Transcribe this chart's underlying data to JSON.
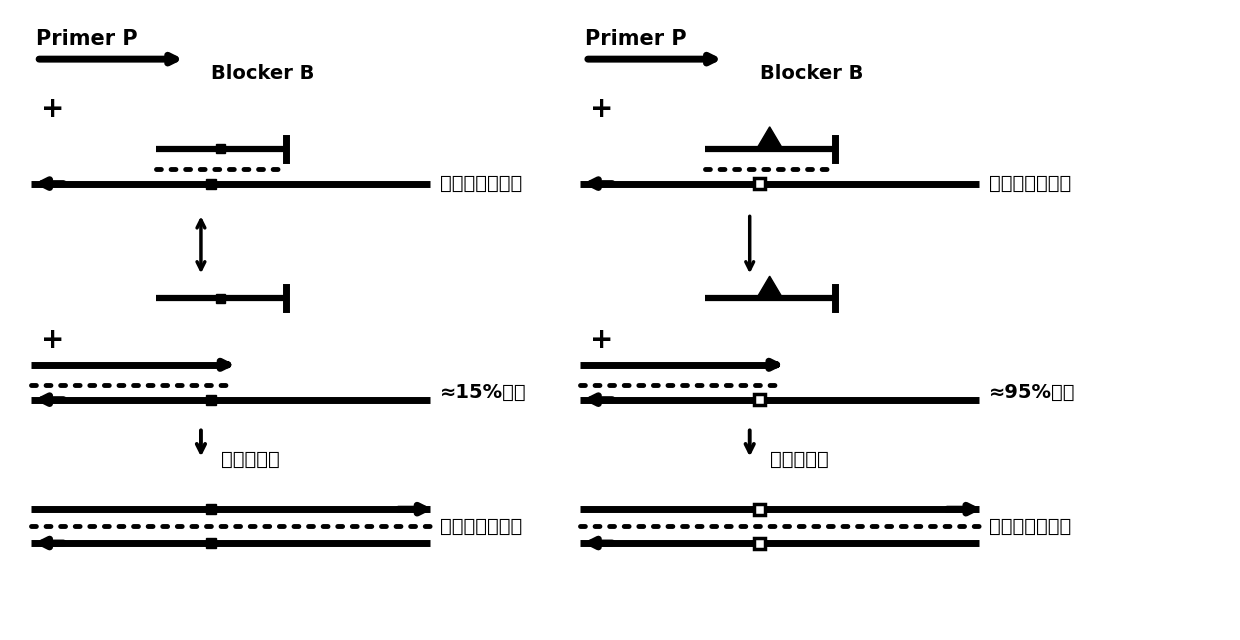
{
  "bg_color": "#ffffff",
  "text_color": "#000000",
  "primer_label": "Primer P",
  "blocker_label": "Blocker B",
  "wt_sample_label": "野生型核酸样本",
  "mut_sample_label": "突变型核酸样本",
  "wt_product_label": "野生型扩增产物",
  "mut_product_label": "突变型扩增产物",
  "yield_wt_label": "≈15%产量",
  "yield_mut_label": "≈95%产量",
  "polymerase_label": "聚合酶延伸"
}
